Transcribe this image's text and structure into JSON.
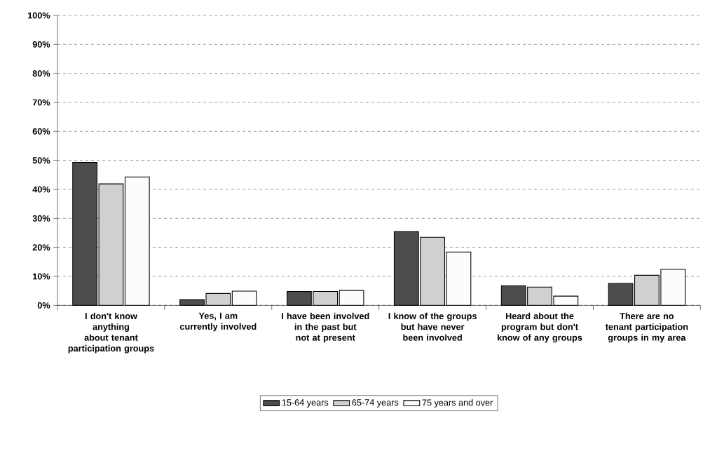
{
  "chart_data": {
    "type": "bar",
    "categories": [
      "I don't know anything about tenant participation groups",
      "Yes, I am currently involved",
      "I have been involved in the past but not at present",
      "I know of the groups but have never been involved",
      "Heard about the program but don't know of any groups",
      "There are no tenant participation groups in my area"
    ],
    "series": [
      {
        "name": "15-64 years",
        "color": "#4d4d4d",
        "values": [
          49.3,
          2.0,
          4.8,
          25.5,
          6.8,
          7.6
        ]
      },
      {
        "name": "65-74 years",
        "color": "#d0d0d0",
        "values": [
          41.9,
          4.1,
          4.8,
          23.5,
          6.3,
          10.4
        ]
      },
      {
        "name": "75 years and over",
        "color": "#fcfcfc",
        "values": [
          44.3,
          4.9,
          5.2,
          18.4,
          3.2,
          12.4
        ]
      }
    ],
    "ylim": [
      0,
      100
    ],
    "yticks": [
      {
        "value": 0,
        "label": "0%"
      },
      {
        "value": 10,
        "label": "10%"
      },
      {
        "value": 20,
        "label": "20%"
      },
      {
        "value": 30,
        "label": "30%"
      },
      {
        "value": 40,
        "label": "40%"
      },
      {
        "value": 50,
        "label": "50%"
      },
      {
        "value": 60,
        "label": "60%"
      },
      {
        "value": 70,
        "label": "70%"
      },
      {
        "value": 80,
        "label": "80%"
      },
      {
        "value": 90,
        "label": "90%"
      },
      {
        "value": 100,
        "label": "100%"
      }
    ],
    "grid": "y",
    "legend": "bottom"
  }
}
